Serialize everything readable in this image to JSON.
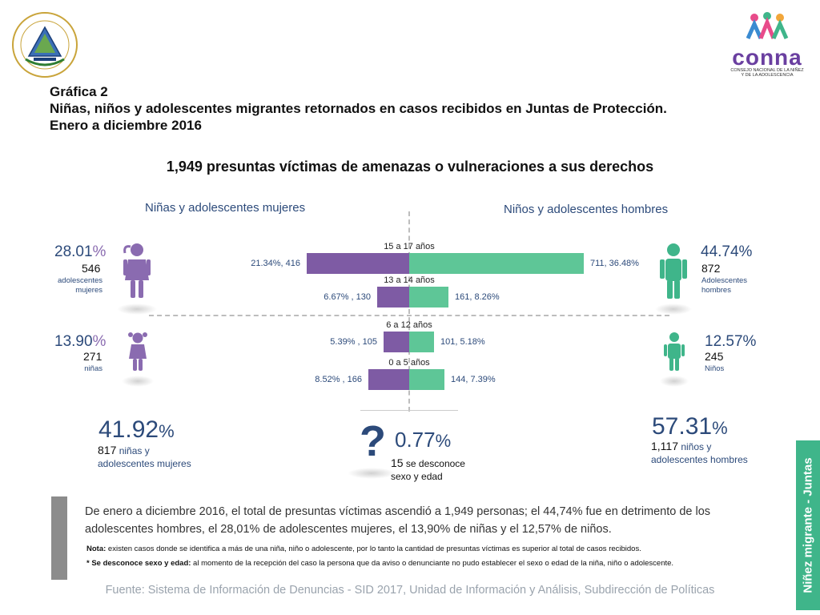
{
  "header": {
    "logo_left_text": "REPÚBLICA DE EL SALVADOR EN LA AMÉRICA CENTRAL",
    "logo_right_name": "conna",
    "logo_right_sub1": "CONSEJO NACIONAL DE LA NIÑEZ",
    "logo_right_sub2": "Y DE LA ADOLESCENCIA",
    "graph_label": "Gráfica 2",
    "title_line1": "Niñas, niños y adolescentes migrantes retornados en casos recibidos en Juntas de Protección.",
    "title_line2": "Enero a diciembre 2016",
    "subtitle": "1,949 presuntas víctimas de amenazas o vulneraciones a sus derechos"
  },
  "left_heading": "Niñas y adolescentes mujeres",
  "right_heading": "Niños y adolescentes hombres",
  "groups": {
    "adol_mujeres": {
      "pct": "28.01",
      "count": "546",
      "desc1": "adolescentes",
      "desc2": "mujeres"
    },
    "ninas": {
      "pct": "13.90",
      "count": "271",
      "desc1": "niñas"
    },
    "adol_hombres": {
      "pct": "44.74",
      "count": "872",
      "desc1": "Adolescentes",
      "desc2": "hombres"
    },
    "ninos": {
      "pct": "12.57",
      "count": "245",
      "desc1": "Niños"
    }
  },
  "pct_sign": "%",
  "chart_data": {
    "type": "bar",
    "categories": [
      "15 a 17 años",
      "13 a 14 años",
      "6 a 12 años",
      "0 a 5 años"
    ],
    "series": [
      {
        "name": "Niñas y adolescentes mujeres",
        "values": [
          416,
          130,
          105,
          166
        ],
        "percent_labels": [
          "21.34%",
          "6.67%",
          "5.39%",
          "8.52%"
        ],
        "color": "#7e5ba4"
      },
      {
        "name": "Niños y adolescentes hombres",
        "values": [
          711,
          161,
          101,
          144
        ],
        "percent_labels": [
          "36.48%",
          "8.26%",
          "5.18%",
          "7.39%"
        ],
        "color": "#5ec697"
      }
    ],
    "labels_left": [
      "21.34%,  416",
      "6.67% ,  130",
      "5.39% , 105",
      "8.52% ,  166"
    ],
    "labels_right": [
      "711,  36.48%",
      "161, 8.26%",
      "101, 5.18%",
      "144, 7.39%"
    ]
  },
  "totals": {
    "female_pct": "41.92",
    "female_count": "817",
    "female_desc1": "niñas y",
    "female_desc2": "adolescentes mujeres",
    "unknown_mark": "?",
    "unknown_pct": "0.77",
    "unknown_count": "15",
    "unknown_desc1": "se desconoce",
    "unknown_desc2": "sexo y edad",
    "male_pct": "57.31",
    "male_count": "1,117",
    "male_desc1": "niños y",
    "male_desc2": "adolescentes hombres"
  },
  "paragraph": "De enero a diciembre 2016, el total de presuntas víctimas ascendió a 1,949 personas; el 44,74% fue en detrimento de los adolescentes hombres, el  28,01% de adolescentes mujeres, el 13,90% de niñas y el 12,57% de niños.",
  "notes": {
    "note1_label": "Nota:",
    "note1_text": " existen casos donde se identifica a más de una niña, niño o adolescente, por lo tanto la cantidad de presuntas víctimas es superior al total de casos recibidos.",
    "note2_label": "* Se desconoce sexo y edad:",
    "note2_text": " al momento de la recepción del caso la persona que da aviso o denunciante no pudo establecer el sexo o edad de la niña, niño o adolescente."
  },
  "source": "Fuente: Sistema de Información de Denuncias - SID 2017, Unidad de Información y Análisis, Subdirección de Políticas",
  "side_tag": "Niñez migrante - Juntas",
  "colors": {
    "female": "#7e5ba4",
    "male": "#5ec697",
    "navy": "#2c4a7a"
  }
}
